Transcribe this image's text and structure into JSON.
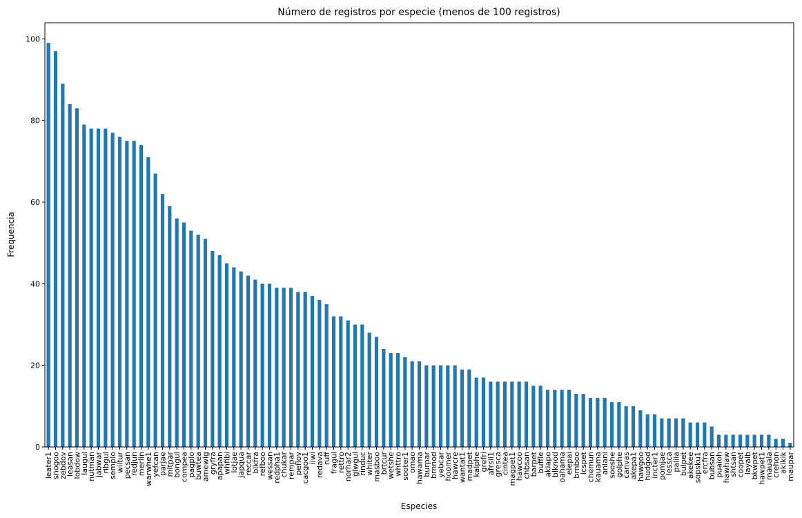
{
  "chart_data": {
    "type": "bar",
    "title": "Número de registros por especie (menos de 100 registros)",
    "x_label": "Especies",
    "y_label": "Frequencia",
    "color": "#1f77b4",
    "categories": [
      "leater1",
      "snogoo",
      "zebdov",
      "leasan",
      "lobdow",
      "laugul",
      "nutman",
      "jabwar",
      "ribgul",
      "semplo",
      "wiltur",
      "pecsan",
      "redjun",
      "merlin",
      "warwhe1",
      "yefcan",
      "parjae",
      "mitpar",
      "bongul",
      "compea",
      "pagplo",
      "buwtea",
      "amewig",
      "gryfra",
      "apapan",
      "whfibi",
      "lotjae",
      "japqua",
      "reccar",
      "blkfra",
      "refboo",
      "wessan",
      "redpha1",
      "chukar",
      "rempar",
      "peflov",
      "cacgoo1",
      "iiwi",
      "redava",
      "ruff",
      "fragul",
      "rettro",
      "norhar2",
      "glwgul",
      "rinduc",
      "whiter",
      "masboo",
      "brtcur",
      "wetshe",
      "whttro",
      "sooter1",
      "omao",
      "hawama",
      "burpar",
      "brnnod",
      "yebcar",
      "hoomer",
      "hawcre",
      "wantat1",
      "madpet",
      "kalphe",
      "grefri",
      "afrsil1",
      "gresca",
      "cintea",
      "magpet1",
      "hawcoo",
      "chbsan",
      "barpet",
      "buffle",
      "akiapo",
      "blknod",
      "oahama",
      "elepai",
      "brnboo",
      "lcspet",
      "chemun",
      "kauama",
      "aniani",
      "sooshe",
      "golphe",
      "canvas",
      "akepa1",
      "hawgoo",
      "hudgod",
      "incter1",
      "pomjae",
      "lessca",
      "palila",
      "bulpet",
      "akekee",
      "sopsku1",
      "ercfra",
      "bubsan",
      "puaioh",
      "hawhaw",
      "shtsan",
      "coopet",
      "layalb",
      "bkwpet",
      "hawpet1",
      "mauala",
      "crehon",
      "akikik",
      "maupar"
    ],
    "values": [
      99,
      97,
      89,
      84,
      83,
      79,
      78,
      78,
      78,
      77,
      76,
      75,
      75,
      74,
      71,
      67,
      62,
      59,
      56,
      55,
      53,
      52,
      51,
      48,
      47,
      45,
      44,
      43,
      42,
      41,
      40,
      40,
      39,
      39,
      39,
      38,
      38,
      37,
      36,
      35,
      32,
      32,
      31,
      30,
      30,
      28,
      27,
      24,
      23,
      23,
      22,
      21,
      21,
      20,
      20,
      20,
      20,
      20,
      19,
      19,
      17,
      17,
      16,
      16,
      16,
      16,
      16,
      16,
      15,
      15,
      14,
      14,
      14,
      14,
      13,
      13,
      12,
      12,
      12,
      11,
      11,
      10,
      10,
      9,
      8,
      8,
      7,
      7,
      7,
      7,
      6,
      6,
      6,
      5,
      3,
      3,
      3,
      3,
      3,
      3,
      3,
      3,
      2,
      2,
      1
    ],
    "ylim": [
      0,
      103.95
    ],
    "yticks": [
      0,
      20,
      40,
      60,
      80,
      100
    ]
  }
}
